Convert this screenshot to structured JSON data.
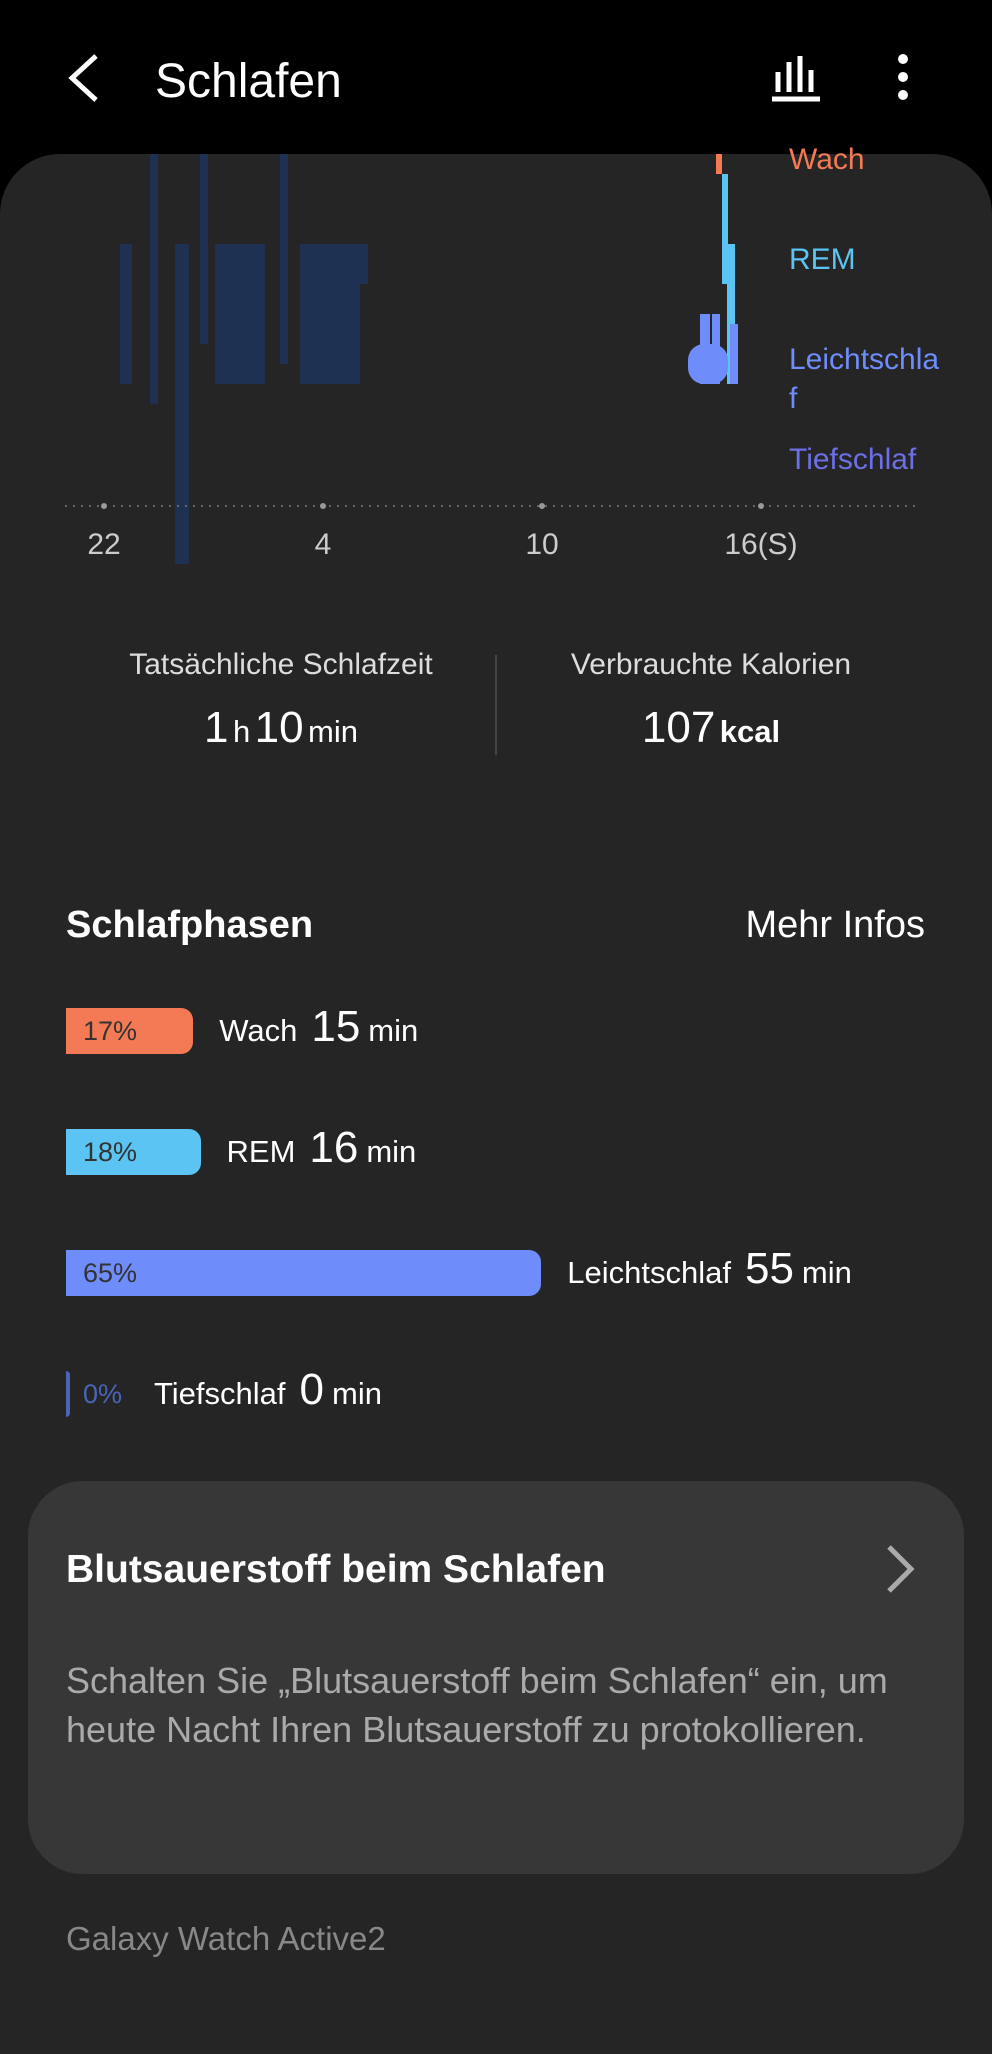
{
  "header": {
    "title": "Schlafen"
  },
  "chart": {
    "x_labels": [
      22,
      4,
      10,
      {
        "value": 16,
        "label": "16(S)"
      }
    ],
    "stages": [
      {
        "name": "Wach",
        "color": "#f47a55"
      },
      {
        "name": "REM",
        "color": "#5cc4f2"
      },
      {
        "name": "Leichtschlaf",
        "color": "#6f8dfa"
      },
      {
        "name": "Tiefschlaf",
        "color": "#6b70e6"
      }
    ]
  },
  "stats": {
    "sleep": {
      "label": "Tatsächliche Schlafzeit",
      "hours": 1,
      "hours_unit": "h",
      "minutes": 10,
      "minutes_unit": "min"
    },
    "calories": {
      "label": "Verbrauchte Kalorien",
      "value": 107,
      "unit": "kcal"
    }
  },
  "phases": {
    "title": "Schlafphasen",
    "more": "Mehr Infos",
    "items": [
      {
        "name": "Wach",
        "percent": {
          "value": 17,
          "label": "17%"
        },
        "minutes": 15,
        "unit": "min",
        "color": "#f47a55"
      },
      {
        "name": "REM",
        "percent": {
          "value": 18,
          "label": "18%"
        },
        "minutes": 16,
        "unit": "min",
        "color": "#5cc4f2"
      },
      {
        "name": "Leichtschlaf",
        "percent": {
          "value": 65,
          "label": "65%"
        },
        "minutes": 55,
        "unit": "min",
        "color": "#6f8dfa"
      },
      {
        "name": "Tiefschlaf",
        "percent": {
          "value": 0,
          "label": "0%"
        },
        "minutes": 0,
        "unit": "min",
        "color": "#4a64b8"
      }
    ]
  },
  "card": {
    "title": "Blutsauerstoff beim Schlafen",
    "text": "Schalten Sie „Blutsauerstoff beim Schlafen“ ein, um heute Nacht Ihren Blutsauerstoff zu protokollieren."
  },
  "footer": {
    "device": "Galaxy Watch Active2"
  }
}
